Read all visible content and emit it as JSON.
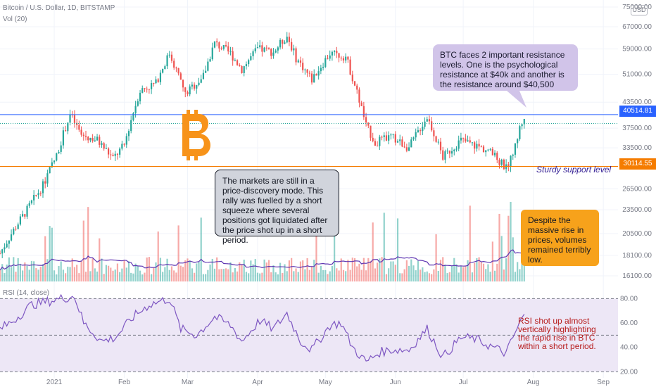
{
  "header": {
    "symbol": "Bitcoin / U.S. Dollar, 1D, BITSTAMP",
    "volume_label": "Vol (20)",
    "currency_badge": "USD",
    "rsi_label": "RSI (14, close)"
  },
  "chart_data": [
    {
      "type": "candlestick",
      "title": "Bitcoin / U.S. Dollar, 1D, BITSTAMP",
      "y_scale": "log",
      "ylim": [
        16100,
        75000
      ],
      "y_ticks": [
        "75000.00",
        "67000.00",
        "59000.00",
        "51000.00",
        "43500.00",
        "37500.00",
        "33500.00",
        "26500.00",
        "23500.00",
        "20500.00",
        "18100.00",
        "16100.00"
      ],
      "x_ticks": [
        "2021",
        "Feb",
        "Mar",
        "Apr",
        "May",
        "Jun",
        "Jul",
        "Aug",
        "Sep"
      ],
      "x_range": [
        "2020-12-08",
        "2021-09-05"
      ],
      "price_path": [
        [
          "2020-12-08",
          18300
        ],
        [
          "2020-12-20",
          23500
        ],
        [
          "2020-12-27",
          27000
        ],
        [
          "2021-01-02",
          32000
        ],
        [
          "2021-01-08",
          40500
        ],
        [
          "2021-01-13",
          36000
        ],
        [
          "2021-01-20",
          35000
        ],
        [
          "2021-01-27",
          31500
        ],
        [
          "2021-02-01",
          34000
        ],
        [
          "2021-02-08",
          46500
        ],
        [
          "2021-02-15",
          48500
        ],
        [
          "2021-02-21",
          57500
        ],
        [
          "2021-02-28",
          45500
        ],
        [
          "2021-03-08",
          50500
        ],
        [
          "2021-03-13",
          61000
        ],
        [
          "2021-03-20",
          57500
        ],
        [
          "2021-03-25",
          52500
        ],
        [
          "2021-04-01",
          59000
        ],
        [
          "2021-04-08",
          58000
        ],
        [
          "2021-04-14",
          63500
        ],
        [
          "2021-04-18",
          56000
        ],
        [
          "2021-04-25",
          49500
        ],
        [
          "2021-05-03",
          57500
        ],
        [
          "2021-05-10",
          56500
        ],
        [
          "2021-05-13",
          50000
        ],
        [
          "2021-05-19",
          38000
        ],
        [
          "2021-05-23",
          34500
        ],
        [
          "2021-05-30",
          35700
        ],
        [
          "2021-06-07",
          33500
        ],
        [
          "2021-06-15",
          40000
        ],
        [
          "2021-06-22",
          31700
        ],
        [
          "2021-06-30",
          35000
        ],
        [
          "2021-07-06",
          34000
        ],
        [
          "2021-07-12",
          33000
        ],
        [
          "2021-07-20",
          29800
        ],
        [
          "2021-07-24",
          33700
        ],
        [
          "2021-07-26",
          37500
        ],
        [
          "2021-07-28",
          40000
        ]
      ],
      "horizontal_lines": [
        {
          "name": "resistance",
          "value": 40514.81,
          "label": "40514.81",
          "color": "#2962ff"
        },
        {
          "name": "support",
          "value": 30114.55,
          "label": "30114.55",
          "color": "#f57c00"
        }
      ],
      "dotted_line_value": 38500,
      "up_color": "#26a69a",
      "down_color": "#ef5350"
    },
    {
      "type": "bar",
      "title": "Vol (20)",
      "note": "daily volume bars with 20-period moving average; low volumes during the late-July rally"
    },
    {
      "type": "line",
      "title": "RSI (14, close)",
      "ylim": [
        15,
        90
      ],
      "y_ticks": [
        "80.00",
        "60.00",
        "40.00",
        "20.00"
      ],
      "levels": [
        80,
        50,
        20
      ],
      "line_color": "#7e57c2",
      "band_color": "#ede7f6",
      "rsi_path": [
        [
          "2020-12-08",
          55
        ],
        [
          "2020-12-14",
          62
        ],
        [
          "2020-12-22",
          75
        ],
        [
          "2020-12-30",
          78
        ],
        [
          "2021-01-04",
          80
        ],
        [
          "2021-01-10",
          82
        ],
        [
          "2021-01-14",
          60
        ],
        [
          "2021-01-22",
          45
        ],
        [
          "2021-01-28",
          48
        ],
        [
          "2021-02-05",
          65
        ],
        [
          "2021-02-12",
          75
        ],
        [
          "2021-02-21",
          80
        ],
        [
          "2021-02-26",
          55
        ],
        [
          "2021-03-05",
          50
        ],
        [
          "2021-03-13",
          65
        ],
        [
          "2021-03-20",
          58
        ],
        [
          "2021-03-25",
          45
        ],
        [
          "2021-04-02",
          62
        ],
        [
          "2021-04-08",
          55
        ],
        [
          "2021-04-14",
          68
        ],
        [
          "2021-04-20",
          45
        ],
        [
          "2021-04-25",
          38
        ],
        [
          "2021-05-03",
          58
        ],
        [
          "2021-05-08",
          60
        ],
        [
          "2021-05-13",
          40
        ],
        [
          "2021-05-19",
          28
        ],
        [
          "2021-05-25",
          36
        ],
        [
          "2021-05-30",
          38
        ],
        [
          "2021-06-07",
          38
        ],
        [
          "2021-06-15",
          55
        ],
        [
          "2021-06-22",
          32
        ],
        [
          "2021-06-30",
          48
        ],
        [
          "2021-07-06",
          47
        ],
        [
          "2021-07-12",
          42
        ],
        [
          "2021-07-20",
          35
        ],
        [
          "2021-07-24",
          52
        ],
        [
          "2021-07-28",
          67
        ]
      ]
    }
  ],
  "annotations": {
    "resistance_note": "BTC faces 2 important resistance levels. One is the psychological resistance at $40k and another is the resistance around $40,500",
    "market_note": "The markets are still in a price-discovery mode. This rally was fuelled by a short squeeze where several positions got liquidated after the price shot up in a short period.",
    "volume_note": "Despite the massive rise in prices, volumes remained terribly low.",
    "rsi_note": "RSI shot up almost vertically highlighting the rapid rise in BTC within a short period.",
    "support_label": "Sturdy support level"
  },
  "colors": {
    "resistance": "#2962ff",
    "support": "#f57c00",
    "bitcoin_logo": "#f7931a",
    "rsi_band": "#ede7f6"
  },
  "icons": [
    "bitcoin-logo-icon"
  ]
}
